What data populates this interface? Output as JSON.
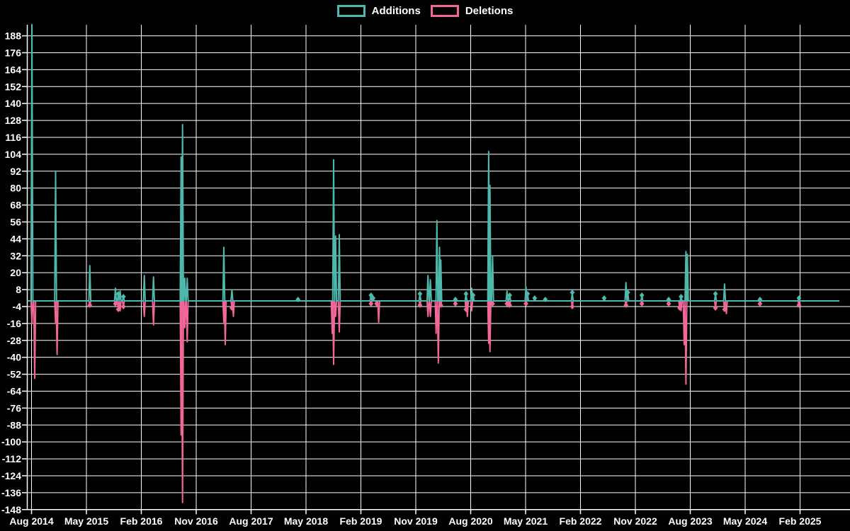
{
  "legend": {
    "additions_label": "Additions",
    "deletions_label": "Deletions"
  },
  "colors": {
    "additions": "#4db8ac",
    "deletions": "#f1679a",
    "grid": "#ffffff",
    "text": "#ffffff",
    "background": "#000000"
  },
  "chart_data": {
    "type": "line",
    "title": "",
    "xlabel": "",
    "ylabel": "",
    "grid": true,
    "legend_position": "top",
    "x_axis": {
      "tick_labels": [
        "Aug 2014",
        "May 2015",
        "Feb 2016",
        "Nov 2016",
        "Aug 2017",
        "May 2018",
        "Feb 2019",
        "Nov 2019",
        "Aug 2020",
        "May 2021",
        "Feb 2022",
        "Nov 2022",
        "Aug 2023",
        "May 2024",
        "Feb 2025"
      ],
      "tick_interval_months": 9
    },
    "y_axis": {
      "ticks": [
        188,
        176,
        164,
        152,
        140,
        128,
        116,
        104,
        92,
        80,
        68,
        56,
        44,
        32,
        20,
        8,
        -4,
        -16,
        -28,
        -40,
        -52,
        -64,
        -76,
        -88,
        -100,
        -112,
        -124,
        -136,
        -148
      ],
      "min": -148,
      "max": 188,
      "step": 12
    },
    "series_names": [
      "Additions",
      "Deletions"
    ],
    "points": [
      {
        "date": "2014-08-03",
        "additions": 196,
        "deletions": -16
      },
      {
        "date": "2014-08-17",
        "additions": 0,
        "deletions": -55
      },
      {
        "date": "2014-11-30",
        "additions": 92,
        "deletions": -16
      },
      {
        "date": "2014-12-07",
        "additions": 0,
        "deletions": -38
      },
      {
        "date": "2015-05-18",
        "additions": 25,
        "deletions": -3
      },
      {
        "date": "2015-09-24",
        "additions": 9,
        "deletions": -2
      },
      {
        "date": "2015-10-08",
        "additions": 5,
        "deletions": -6
      },
      {
        "date": "2015-10-17",
        "additions": 7,
        "deletions": -7
      },
      {
        "date": "2015-11-03",
        "additions": 3,
        "deletions": -4
      },
      {
        "date": "2016-02-16",
        "additions": 18,
        "deletions": -11
      },
      {
        "date": "2016-04-01",
        "additions": 17,
        "deletions": -17
      },
      {
        "date": "2016-08-17",
        "additions": 102,
        "deletions": -95
      },
      {
        "date": "2016-08-24",
        "additions": 125,
        "deletions": -143
      },
      {
        "date": "2016-09-05",
        "additions": 16,
        "deletions": -19
      },
      {
        "date": "2016-09-17",
        "additions": 16,
        "deletions": -29
      },
      {
        "date": "2017-03-17",
        "additions": 38,
        "deletions": -15
      },
      {
        "date": "2017-03-24",
        "additions": 0,
        "deletions": -31
      },
      {
        "date": "2017-04-27",
        "additions": 8,
        "deletions": -5
      },
      {
        "date": "2017-05-04",
        "additions": 0,
        "deletions": -11
      },
      {
        "date": "2018-03-22",
        "additions": 1,
        "deletions": 0
      },
      {
        "date": "2018-09-10",
        "additions": 0,
        "deletions": -23
      },
      {
        "date": "2018-09-17",
        "additions": 100,
        "deletions": -45
      },
      {
        "date": "2018-09-27",
        "additions": 46,
        "deletions": -11
      },
      {
        "date": "2018-10-15",
        "additions": 47,
        "deletions": -22
      },
      {
        "date": "2019-03-21",
        "additions": 4,
        "deletions": -2
      },
      {
        "date": "2019-04-01",
        "additions": 2,
        "deletions": 0
      },
      {
        "date": "2019-04-19",
        "additions": 0,
        "deletions": -2
      },
      {
        "date": "2019-04-29",
        "additions": 0,
        "deletions": -15
      },
      {
        "date": "2019-11-22",
        "additions": 5,
        "deletions": -3
      },
      {
        "date": "2020-01-01",
        "additions": 18,
        "deletions": -11
      },
      {
        "date": "2020-01-13",
        "additions": 15,
        "deletions": -11
      },
      {
        "date": "2020-02-11",
        "additions": 0,
        "deletions": -23
      },
      {
        "date": "2020-02-15",
        "additions": 57,
        "deletions": 0
      },
      {
        "date": "2020-02-22",
        "additions": 0,
        "deletions": -44
      },
      {
        "date": "2020-02-28",
        "additions": 38,
        "deletions": 0
      },
      {
        "date": "2020-03-04",
        "additions": 29,
        "deletions": -3
      },
      {
        "date": "2020-05-16",
        "additions": 1,
        "deletions": -2
      },
      {
        "date": "2020-07-08",
        "additions": 5,
        "deletions": -6
      },
      {
        "date": "2020-07-15",
        "additions": 0,
        "deletions": -11
      },
      {
        "date": "2020-08-06",
        "additions": 9,
        "deletions": -7
      },
      {
        "date": "2020-08-13",
        "additions": 4,
        "deletions": 0
      },
      {
        "date": "2020-10-30",
        "additions": 106,
        "deletions": -30
      },
      {
        "date": "2020-11-06",
        "additions": 82,
        "deletions": -36
      },
      {
        "date": "2020-11-19",
        "additions": 32,
        "deletions": -2
      },
      {
        "date": "2021-01-30",
        "additions": 7,
        "deletions": -2
      },
      {
        "date": "2021-02-13",
        "additions": 4,
        "deletions": -3
      },
      {
        "date": "2021-05-03",
        "additions": 10,
        "deletions": -2
      },
      {
        "date": "2021-05-11",
        "additions": 5,
        "deletions": 0
      },
      {
        "date": "2021-06-16",
        "additions": 2,
        "deletions": 0
      },
      {
        "date": "2021-08-08",
        "additions": 1,
        "deletions": 0
      },
      {
        "date": "2021-12-21",
        "additions": 6,
        "deletions": -4
      },
      {
        "date": "2022-05-28",
        "additions": 2,
        "deletions": 0
      },
      {
        "date": "2022-09-15",
        "additions": 13,
        "deletions": -3
      },
      {
        "date": "2022-09-24",
        "additions": 6,
        "deletions": 0
      },
      {
        "date": "2022-12-03",
        "additions": 4,
        "deletions": -2
      },
      {
        "date": "2023-04-15",
        "additions": 1,
        "deletions": -2
      },
      {
        "date": "2023-06-09",
        "additions": 0,
        "deletions": -5
      },
      {
        "date": "2023-06-16",
        "additions": 3,
        "deletions": -7
      },
      {
        "date": "2023-07-01",
        "additions": 0,
        "deletions": -31
      },
      {
        "date": "2023-07-10",
        "additions": 35,
        "deletions": -59
      },
      {
        "date": "2023-07-17",
        "additions": 33,
        "deletions": 0
      },
      {
        "date": "2023-12-05",
        "additions": 5,
        "deletions": -5
      },
      {
        "date": "2024-01-20",
        "additions": 12,
        "deletions": -6
      },
      {
        "date": "2024-01-29",
        "additions": 0,
        "deletions": -9
      },
      {
        "date": "2024-07-14",
        "additions": 1,
        "deletions": -2
      },
      {
        "date": "2025-01-26",
        "additions": 2,
        "deletions": -3
      }
    ]
  }
}
